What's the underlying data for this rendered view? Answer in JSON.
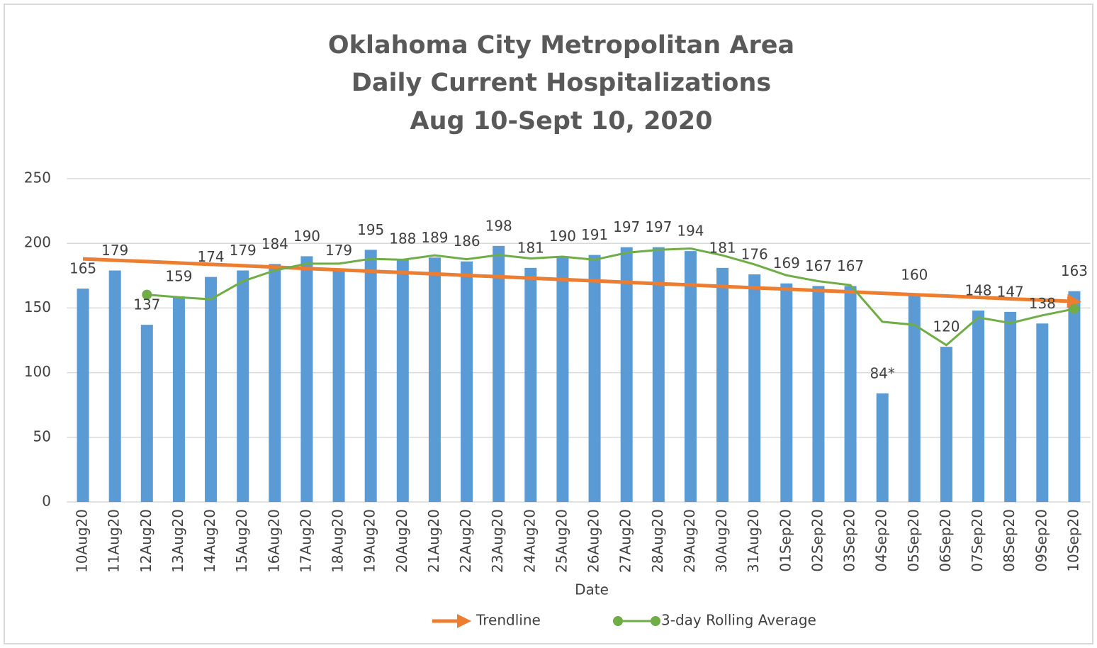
{
  "chart_data": {
    "type": "bar",
    "title": [
      "Oklahoma City Metropolitan Area",
      "Daily Current Hospitalizations",
      "Aug 10-Sept 10, 2020"
    ],
    "x_label": "Date",
    "categories": [
      "10Aug20",
      "11Aug20",
      "12Aug20",
      "13Aug20",
      "14Aug20",
      "15Aug20",
      "16Aug20",
      "17Aug20",
      "18Aug20",
      "19Aug20",
      "20Aug20",
      "21Aug20",
      "22Aug20",
      "23Aug20",
      "24Aug20",
      "25Aug20",
      "26Aug20",
      "27Aug20",
      "28Aug20",
      "29Aug20",
      "30Aug20",
      "31Aug20",
      "01Sep20",
      "02Sep20",
      "03Sep20",
      "04Sep20",
      "05Sep20",
      "06Sep20",
      "07Sep20",
      "08Sep20",
      "09Sep20",
      "10Sep20"
    ],
    "values": [
      165,
      179,
      137,
      159,
      174,
      179,
      184,
      190,
      179,
      195,
      188,
      189,
      186,
      198,
      181,
      190,
      191,
      197,
      197,
      194,
      181,
      176,
      169,
      167,
      167,
      84,
      160,
      120,
      148,
      147,
      138,
      163
    ],
    "value_labels": [
      "165",
      "179",
      "137",
      "159",
      "174",
      "179",
      "184",
      "190",
      "179",
      "195",
      "188",
      "189",
      "186",
      "198",
      "181",
      "190",
      "191",
      "197",
      "197",
      "194",
      "181",
      "176",
      "169",
      "167",
      "167",
      "84*",
      "160",
      "120",
      "148",
      "147",
      "138",
      "163"
    ],
    "color": "#5b9bd5",
    "lines": [
      {
        "name": "Trendline",
        "color": "#ed7d31",
        "values": [
          188,
          186.9,
          185.9,
          184.8,
          183.7,
          182.7,
          181.6,
          180.5,
          179.5,
          178.4,
          177.4,
          176.3,
          175.2,
          174.2,
          173.1,
          172.0,
          171.0,
          169.9,
          168.8,
          167.8,
          166.7,
          165.6,
          164.6,
          163.5,
          162.5,
          161.4,
          160.3,
          159.3,
          158.2,
          157.1,
          156.1,
          155
        ]
      },
      {
        "name": "3-day Rolling Average",
        "color": "#70ad47",
        "values": [
          null,
          null,
          160.3,
          158.3,
          156.7,
          170.7,
          179,
          184.3,
          184.3,
          188,
          187.3,
          190.7,
          187.7,
          191,
          188.3,
          189.7,
          187.3,
          192.7,
          195,
          196,
          190.7,
          183.7,
          175.3,
          170.7,
          167.7,
          139.3,
          137,
          121.3,
          142.7,
          138.3,
          144.3,
          149.3
        ]
      }
    ],
    "ylim": [
      0,
      250
    ],
    "yticks": [
      0,
      50,
      100,
      150,
      200,
      250
    ],
    "grid": true
  }
}
